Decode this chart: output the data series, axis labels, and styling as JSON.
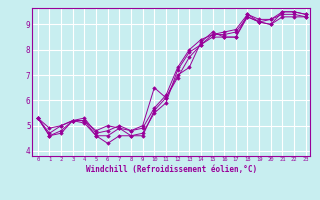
{
  "xlabel": "Windchill (Refroidissement éolien,°C)",
  "bg_color": "#c8eef0",
  "line_color": "#990099",
  "grid_color": "#ffffff",
  "xmin": -0.5,
  "xmax": 23.4,
  "ymin": 3.8,
  "ymax": 9.65,
  "yticks": [
    4,
    5,
    6,
    7,
    8,
    9
  ],
  "xticks": [
    0,
    1,
    2,
    3,
    4,
    5,
    6,
    7,
    8,
    9,
    10,
    11,
    12,
    13,
    14,
    15,
    16,
    17,
    18,
    19,
    20,
    21,
    22,
    23
  ],
  "series": [
    [
      5.3,
      4.6,
      4.7,
      5.2,
      5.2,
      4.6,
      4.3,
      4.6,
      4.6,
      4.6,
      5.6,
      6.1,
      6.9,
      7.7,
      8.2,
      8.5,
      8.5,
      8.5,
      9.3,
      9.1,
      9.0,
      9.3,
      9.3,
      9.3
    ],
    [
      5.3,
      4.6,
      4.8,
      5.2,
      5.1,
      4.6,
      4.6,
      4.9,
      4.6,
      4.7,
      5.5,
      5.9,
      7.2,
      7.9,
      8.2,
      8.6,
      8.6,
      8.7,
      9.3,
      9.1,
      9.2,
      9.4,
      9.4,
      9.3
    ],
    [
      5.3,
      4.7,
      5.0,
      5.2,
      5.3,
      4.7,
      4.8,
      5.0,
      4.8,
      4.9,
      5.7,
      6.2,
      7.3,
      8.0,
      8.4,
      8.6,
      8.7,
      8.8,
      9.4,
      9.2,
      9.2,
      9.5,
      9.5,
      9.4
    ],
    [
      5.3,
      4.9,
      5.0,
      5.2,
      5.2,
      4.8,
      5.0,
      4.9,
      4.8,
      5.0,
      6.5,
      6.1,
      7.0,
      7.3,
      8.3,
      8.7,
      8.5,
      8.5,
      9.4,
      9.1,
      9.0,
      9.5,
      9.5,
      9.4
    ]
  ]
}
